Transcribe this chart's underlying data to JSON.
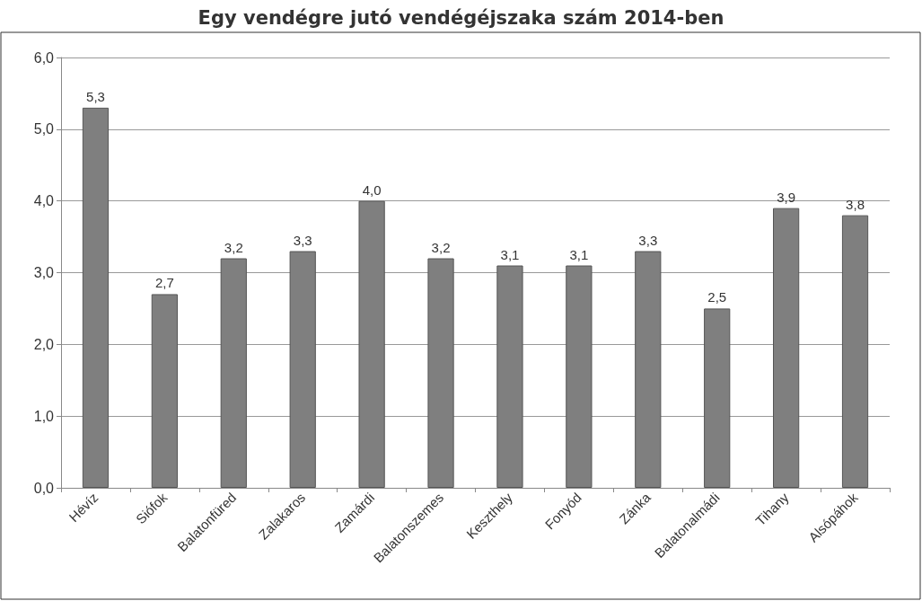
{
  "chart_data": {
    "type": "bar",
    "title": "Egy vendégre jutó vendégéjszaka szám 2014-ben",
    "categories": [
      "Hévíz",
      "Siófok",
      "Balatonfüred",
      "Zalakaros",
      "Zamárdi",
      "Balatonszemes",
      "Keszthely",
      "Fonyód",
      "Zánka",
      "Balatonalmádi",
      "Tihany",
      "Alsópáhok"
    ],
    "values": [
      5.3,
      2.7,
      3.2,
      3.3,
      4.0,
      3.2,
      3.1,
      3.1,
      3.3,
      2.5,
      3.9,
      3.8
    ],
    "value_labels": [
      "5,3",
      "2,7",
      "3,2",
      "3,3",
      "4,0",
      "3,2",
      "3,1",
      "3,1",
      "3,3",
      "2,5",
      "3,9",
      "3,8"
    ],
    "color": "#7f7f7f",
    "ylim": [
      0,
      6
    ],
    "yticks": [
      {
        "value": 0,
        "label": "0,0"
      },
      {
        "value": 1,
        "label": "1,0"
      },
      {
        "value": 2,
        "label": "2,0"
      },
      {
        "value": 3,
        "label": "3,0"
      },
      {
        "value": 4,
        "label": "4,0"
      },
      {
        "value": 5,
        "label": "5,0"
      },
      {
        "value": 6,
        "label": "6,0"
      }
    ],
    "grid": "y"
  }
}
